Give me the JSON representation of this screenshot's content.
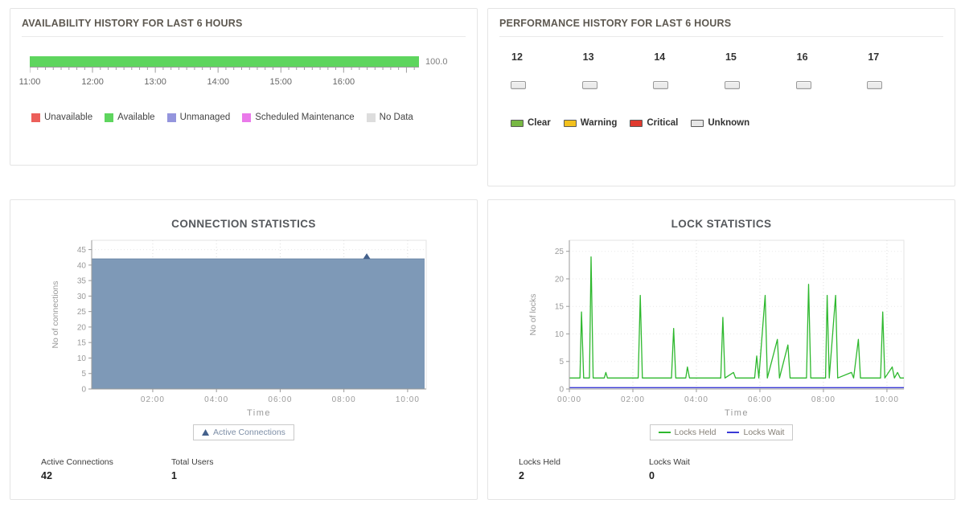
{
  "panels": {
    "availability": {
      "title": "AVAILABILITY HISTORY FOR LAST 6 HOURS",
      "value_label": "100.0",
      "bar_color": "#5ed55e",
      "time_labels": [
        "11:00",
        "12:00",
        "13:00",
        "14:00",
        "15:00",
        "16:00"
      ],
      "legend": [
        {
          "label": "Unavailable",
          "color": "#ec5f5a"
        },
        {
          "label": "Available",
          "color": "#5ed55e"
        },
        {
          "label": "Unmanaged",
          "color": "#9495dd"
        },
        {
          "label": "Scheduled Maintenance",
          "color": "#ea79ea"
        },
        {
          "label": "No Data",
          "color": "#dddddd"
        }
      ]
    },
    "performance": {
      "title": "PERFORMANCE HISTORY FOR LAST 6 HOURS",
      "hours": [
        {
          "hour": "12",
          "status_color": "#ececec"
        },
        {
          "hour": "13",
          "status_color": "#ececec"
        },
        {
          "hour": "14",
          "status_color": "#ececec"
        },
        {
          "hour": "15",
          "status_color": "#ececec"
        },
        {
          "hour": "16",
          "status_color": "#ececec"
        },
        {
          "hour": "17",
          "status_color": "#ececec"
        }
      ],
      "legend": [
        {
          "label": "Clear",
          "color": "#77b843"
        },
        {
          "label": "Warning",
          "color": "#f3c11e"
        },
        {
          "label": "Critical",
          "color": "#e03a2f"
        },
        {
          "label": "Unknown",
          "color": "#e6e6e6"
        }
      ]
    },
    "connection": {
      "stats": [
        {
          "label": "Active Connections",
          "value": "42"
        },
        {
          "label": "Total Users",
          "value": "1"
        }
      ]
    },
    "lock": {
      "stats": [
        {
          "label": "Locks Held",
          "value": "2"
        },
        {
          "label": "Locks Wait",
          "value": "0"
        }
      ]
    }
  },
  "chart_data": [
    {
      "id": "connection",
      "type": "area",
      "title": "CONNECTION STATISTICS",
      "xlabel": "Time",
      "ylabel": "No of connections",
      "x_range_minutes": [
        5,
        635
      ],
      "ylim": [
        0,
        48
      ],
      "y_ticks": [
        0,
        5,
        10,
        15,
        20,
        25,
        30,
        35,
        40,
        45
      ],
      "x_ticks": [
        {
          "minute": 120,
          "label": "02:00"
        },
        {
          "minute": 240,
          "label": "04:00"
        },
        {
          "minute": 360,
          "label": "06:00"
        },
        {
          "minute": 480,
          "label": "08:00"
        },
        {
          "minute": 600,
          "label": "10:00"
        }
      ],
      "series": [
        {
          "name": "Active Connections",
          "color": "#7e99b7",
          "stroke": "#6d89a9",
          "fill": true,
          "points": [
            [
              5,
              42
            ],
            [
              632,
              42
            ]
          ],
          "marker_point": [
            523,
            42
          ],
          "marker_color": "#44618c"
        }
      ],
      "legend": [
        {
          "label": "Active Connections",
          "color": "#44618c",
          "glyph": "triangle"
        }
      ]
    },
    {
      "id": "lock",
      "type": "line",
      "title": "LOCK STATISTICS",
      "xlabel": "Time",
      "ylabel": "No of locks",
      "x_range_minutes": [
        0,
        632
      ],
      "ylim": [
        0,
        27
      ],
      "y_ticks": [
        0,
        5,
        10,
        15,
        20,
        25
      ],
      "x_ticks": [
        {
          "minute": 0,
          "label": "00:00"
        },
        {
          "minute": 120,
          "label": "02:00"
        },
        {
          "minute": 240,
          "label": "04:00"
        },
        {
          "minute": 360,
          "label": "06:00"
        },
        {
          "minute": 480,
          "label": "08:00"
        },
        {
          "minute": 600,
          "label": "10:00"
        }
      ],
      "series": [
        {
          "name": "Locks Held",
          "color": "#2eb82e",
          "points": [
            [
              0,
              2
            ],
            [
              20,
              2
            ],
            [
              23,
              14
            ],
            [
              27,
              2
            ],
            [
              38,
              2
            ],
            [
              41,
              24
            ],
            [
              45,
              2
            ],
            [
              66,
              2
            ],
            [
              69,
              3
            ],
            [
              72,
              2
            ],
            [
              130,
              2
            ],
            [
              134,
              17
            ],
            [
              138,
              2
            ],
            [
              193,
              2
            ],
            [
              197,
              11
            ],
            [
              201,
              2
            ],
            [
              220,
              2
            ],
            [
              223,
              4
            ],
            [
              227,
              2
            ],
            [
              286,
              2
            ],
            [
              290,
              13
            ],
            [
              294,
              2
            ],
            [
              310,
              3
            ],
            [
              314,
              2
            ],
            [
              350,
              2
            ],
            [
              354,
              6
            ],
            [
              358,
              2
            ],
            [
              370,
              17
            ],
            [
              374,
              2
            ],
            [
              393,
              9
            ],
            [
              397,
              2
            ],
            [
              413,
              8
            ],
            [
              417,
              2
            ],
            [
              448,
              2
            ],
            [
              452,
              19
            ],
            [
              456,
              2
            ],
            [
              484,
              2
            ],
            [
              487,
              17
            ],
            [
              491,
              2
            ],
            [
              503,
              17
            ],
            [
              507,
              2
            ],
            [
              533,
              3
            ],
            [
              537,
              2
            ],
            [
              546,
              9
            ],
            [
              550,
              2
            ],
            [
              588,
              2
            ],
            [
              592,
              14
            ],
            [
              596,
              2
            ],
            [
              610,
              4
            ],
            [
              614,
              2
            ],
            [
              620,
              3
            ],
            [
              625,
              2
            ],
            [
              632,
              2
            ]
          ]
        },
        {
          "name": "Locks Wait",
          "color": "#3a3ad6",
          "points": [
            [
              0,
              0.25
            ],
            [
              632,
              0.25
            ]
          ]
        }
      ],
      "legend": [
        {
          "label": "Locks Held",
          "color": "#2eb82e",
          "glyph": "line"
        },
        {
          "label": "Locks Wait",
          "color": "#3a3ad6",
          "glyph": "line"
        }
      ]
    }
  ]
}
